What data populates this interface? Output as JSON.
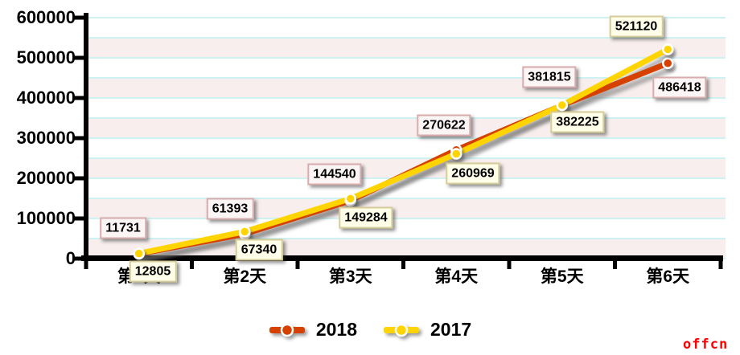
{
  "watermark": {
    "text": "offcn",
    "color": "#FF0000"
  },
  "chart_data": {
    "type": "line",
    "categories": [
      "第1天",
      "第2天",
      "第3天",
      "第4天",
      "第5天",
      "第6天"
    ],
    "series": [
      {
        "name": "2018",
        "color": "#D64100",
        "values": [
          11731,
          61393,
          144540,
          270622,
          381815,
          486418
        ],
        "label_style": "rose",
        "label_centers": [
          [
            153,
            284
          ],
          [
            286,
            260
          ],
          [
            416,
            217
          ],
          [
            552,
            156
          ],
          [
            683,
            96
          ],
          [
            845,
            109
          ]
        ]
      },
      {
        "name": "2017",
        "color": "#FFD400",
        "values": [
          12805,
          67340,
          149284,
          260969,
          382225,
          521120
        ],
        "label_style": "ivory",
        "label_centers": [
          [
            190,
            338
          ],
          [
            322,
            311
          ],
          [
            455,
            271
          ],
          [
            588,
            216
          ],
          [
            718,
            152
          ],
          [
            791,
            33
          ]
        ]
      }
    ],
    "title": "",
    "xlabel": "",
    "ylabel": "",
    "ylim": [
      0,
      600000
    ],
    "ytick_interval": 100000,
    "yticks": [
      "0",
      "100000",
      "200000",
      "300000",
      "400000",
      "500000",
      "600000"
    ],
    "band_interval": 50000,
    "grid": true,
    "legend_position": "bottom-center",
    "plot_colors": {
      "band_pink": "#F8EEEE",
      "gridline": "#CEF2F2",
      "axis": "#000000",
      "dot_ring": "#FFFFFF",
      "shadow": "#6B6B6B"
    }
  }
}
